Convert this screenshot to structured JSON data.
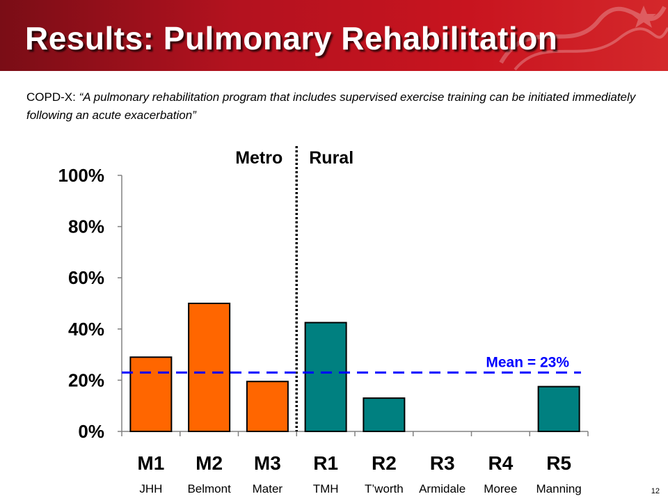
{
  "slide": {
    "title": "Results: Pulmonary Rehabilitation",
    "subtitle_prefix": "COPD-X: ",
    "subtitle_quote": "“A pulmonary rehabilitation program that includes supervised exercise training can be initiated immediately following an acute exacerbation”",
    "page_number": "12"
  },
  "chart_data": {
    "type": "bar",
    "categories": [
      "M1",
      "M2",
      "M3",
      "R1",
      "R2",
      "R3",
      "R4",
      "R5"
    ],
    "sites": [
      "JHH",
      "Belmont",
      "Mater",
      "TMH",
      "T’worth",
      "Armidale",
      "Moree",
      "Manning"
    ],
    "values": [
      29,
      50,
      19.5,
      42.5,
      13,
      0,
      0,
      17.5
    ],
    "groups": [
      {
        "label": "Metro",
        "color": "#ff6600",
        "categories": [
          "M1",
          "M2",
          "M3"
        ]
      },
      {
        "label": "Rural",
        "color": "#008080",
        "categories": [
          "R1",
          "R2",
          "R3",
          "R4",
          "R5"
        ]
      }
    ],
    "y_ticks": [
      "0%",
      "20%",
      "40%",
      "60%",
      "80%",
      "100%"
    ],
    "ylim": [
      0,
      100
    ],
    "mean": {
      "value": 23,
      "label": "Mean = 23%",
      "color": "#0000ff"
    },
    "grid": false
  }
}
